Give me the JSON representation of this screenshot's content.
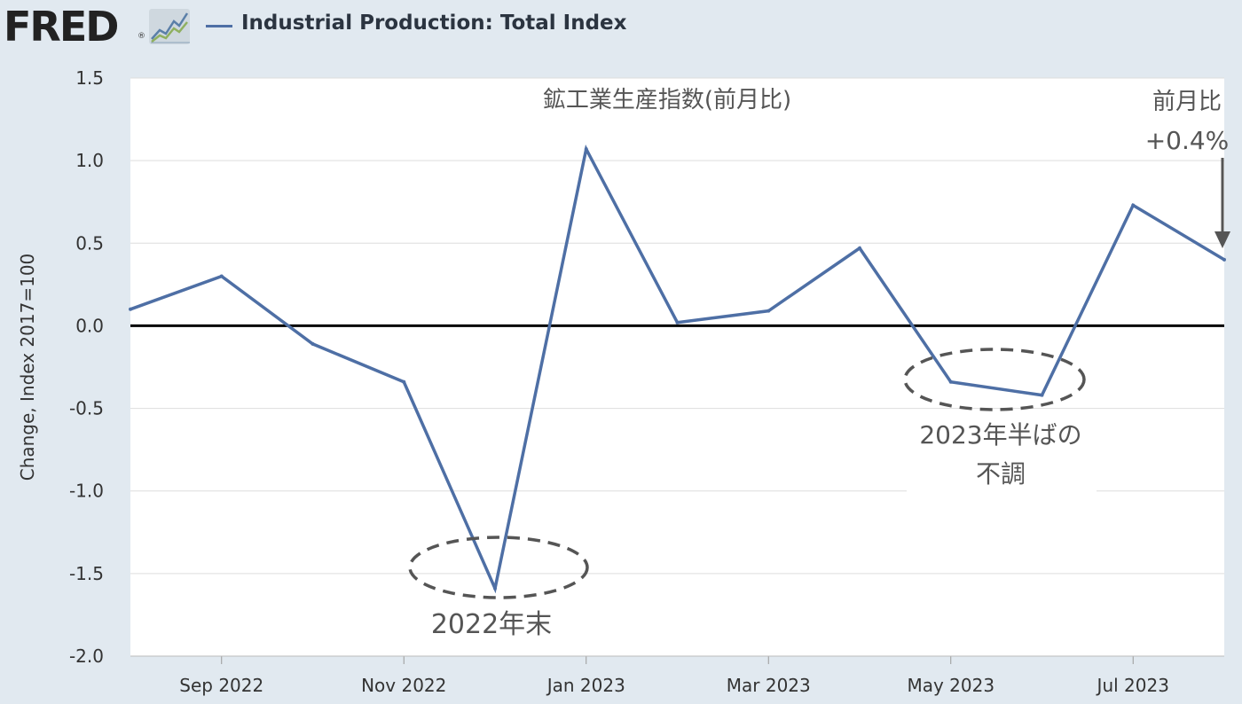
{
  "header": {
    "logo_text": "FRED",
    "logo_reg": "®",
    "series_label": "Industrial Production: Total Index"
  },
  "chart_data": {
    "type": "line",
    "title": "",
    "ylabel": "Change, Index 2017=100",
    "xlabel": "",
    "ylim": [
      -2.0,
      1.5
    ],
    "yticks": [
      1.5,
      1.0,
      0.5,
      0.0,
      -0.5,
      -1.0,
      -1.5,
      -2.0
    ],
    "ytick_labels": [
      "1.5",
      "1.0",
      "0.5",
      "0.0",
      "-0.5",
      "-1.0",
      "-1.5",
      "-2.0"
    ],
    "x": [
      "2022-08",
      "2022-09",
      "2022-10",
      "2022-11",
      "2022-12",
      "2023-01",
      "2023-02",
      "2023-03",
      "2023-04",
      "2023-05",
      "2023-06",
      "2023-07",
      "2023-08"
    ],
    "xtick_labels": [
      {
        "month": "2022-09",
        "label": "Sep 2022"
      },
      {
        "month": "2022-11",
        "label": "Nov 2022"
      },
      {
        "month": "2023-01",
        "label": "Jan 2023"
      },
      {
        "month": "2023-03",
        "label": "Mar 2023"
      },
      {
        "month": "2023-05",
        "label": "May 2023"
      },
      {
        "month": "2023-07",
        "label": "Jul 2023"
      }
    ],
    "series": [
      {
        "name": "Industrial Production: Total Index",
        "color": "#4e6fa5",
        "values": [
          0.1,
          0.3,
          -0.11,
          -0.34,
          -1.59,
          1.07,
          0.02,
          0.09,
          0.47,
          -0.34,
          -0.42,
          0.73,
          0.4
        ]
      }
    ],
    "annotations": {
      "title_text": "鉱工業生産指数(前月比)",
      "callout_line1": "前月比",
      "callout_line2": "+0.4%",
      "label_2022": "2022年末",
      "label_2023_line1": "2023年半ばの",
      "label_2023_line2": "不調"
    },
    "colors": {
      "line": "#4e6fa5",
      "zero_line": "#000000",
      "grid": "#dddddd",
      "plot_bg": "#ffffff",
      "page_bg": "#e1e9f0",
      "annotation_text": "#555555"
    }
  }
}
